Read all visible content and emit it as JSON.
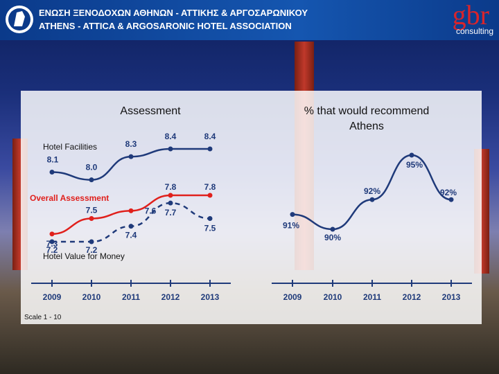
{
  "header": {
    "title_line1": "ΕΝΩΣΗ ΞΕΝΟΔΟΧΩΝ ΑΘΗΝΩΝ - ΑΤΤΙΚΗΣ & ΑΡΓΟΣΑΡΩΝΙΚΟΥ",
    "title_line2": "ATHENS - ATTICA & ARGOSARONIC HOTEL ASSOCIATION",
    "brand": "gbr",
    "brand_sub": "consulting"
  },
  "scale_note": "Scale 1 - 10",
  "colors": {
    "header": "#1556b0",
    "hotel_facilities": "#1f3a7a",
    "overall": "#e0201c",
    "value": "#1f3a7a",
    "recommend": "#1f3a7a"
  },
  "chart_data": [
    {
      "type": "line",
      "title": "Assessment",
      "categories": [
        "2009",
        "2010",
        "2011",
        "2012",
        "2013"
      ],
      "series": [
        {
          "name": "Hotel Facilities",
          "values": [
            8.1,
            8.0,
            8.3,
            8.4,
            8.4
          ],
          "labels": [
            "8.1",
            "8.0",
            "8.3",
            "8.4",
            "8.4"
          ],
          "style": "solid"
        },
        {
          "name": "Overall Assessment",
          "values": [
            7.3,
            7.5,
            7.6,
            7.8,
            7.8
          ],
          "labels": [
            "7.3",
            "7.5",
            "7.6",
            "7.8",
            "7.8"
          ],
          "style": "solid"
        },
        {
          "name": "Hotel Value for Money",
          "values": [
            7.2,
            7.2,
            7.4,
            7.7,
            7.5
          ],
          "labels": [
            "7.2",
            "7.2",
            "7.4",
            "7.7",
            "7.5"
          ],
          "style": "dashed"
        }
      ]
    },
    {
      "type": "line",
      "title": "% that would recommend Athens",
      "categories": [
        "2009",
        "2010",
        "2011",
        "2012",
        "2013"
      ],
      "series": [
        {
          "name": "",
          "values": [
            91,
            90,
            92,
            95,
            92
          ],
          "labels": [
            "91%",
            "90%",
            "92%",
            "95%",
            "92%"
          ]
        }
      ]
    }
  ]
}
